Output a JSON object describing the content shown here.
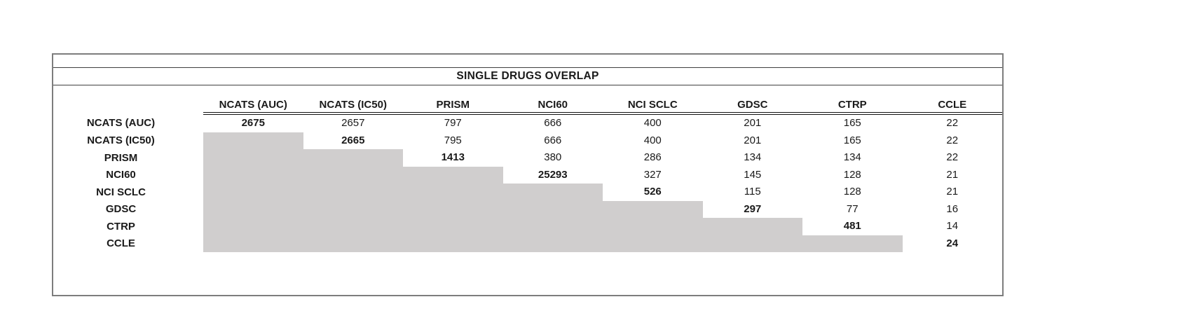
{
  "chart_data": {
    "type": "table",
    "title": "SINGLE DRUGS OVERLAP",
    "columns": [
      "NCATS (AUC)",
      "NCATS (IC50)",
      "PRISM",
      "NCI60",
      "NCI SCLC",
      "GDSC",
      "CTRP",
      "CCLE"
    ],
    "rows": [
      {
        "label": "NCATS (AUC)",
        "values": [
          2675,
          2657,
          797,
          666,
          400,
          201,
          165,
          22
        ]
      },
      {
        "label": "NCATS (IC50)",
        "values": [
          null,
          2665,
          795,
          666,
          400,
          201,
          165,
          22
        ]
      },
      {
        "label": "PRISM",
        "values": [
          null,
          null,
          1413,
          380,
          286,
          134,
          134,
          22
        ]
      },
      {
        "label": "NCI60",
        "values": [
          null,
          null,
          null,
          25293,
          327,
          145,
          128,
          21
        ]
      },
      {
        "label": "NCI SCLC",
        "values": [
          null,
          null,
          null,
          null,
          526,
          115,
          128,
          21
        ]
      },
      {
        "label": "GDSC",
        "values": [
          null,
          null,
          null,
          null,
          null,
          297,
          77,
          16
        ]
      },
      {
        "label": "CTRP",
        "values": [
          null,
          null,
          null,
          null,
          null,
          null,
          481,
          14
        ]
      },
      {
        "label": "CCLE",
        "values": [
          null,
          null,
          null,
          null,
          null,
          null,
          null,
          24
        ]
      }
    ],
    "layout": {
      "diagonal_values_bold": true,
      "lower_triangle_shaded": true,
      "shaded_fill": "#d0cece",
      "header_underline": "double",
      "grid": "off"
    }
  }
}
